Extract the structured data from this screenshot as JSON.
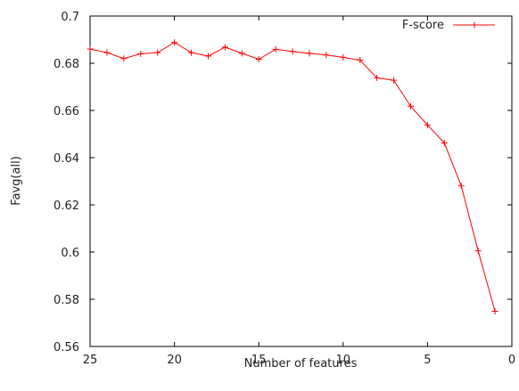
{
  "chart_data": {
    "type": "line",
    "xlabel": "Number of features",
    "ylabel": "Favg(all)",
    "xlim": [
      25,
      0
    ],
    "ylim": [
      0.56,
      0.7
    ],
    "x_ticks": [
      25,
      20,
      15,
      10,
      5,
      0
    ],
    "y_ticks": [
      0.56,
      0.58,
      0.6,
      0.62,
      0.64,
      0.66,
      0.68,
      0.7
    ],
    "x_tick_labels": [
      "25",
      "20",
      "15",
      "10",
      "5",
      "0"
    ],
    "y_tick_labels": [
      "0.56",
      "0.58",
      "0.6",
      "0.62",
      "0.64",
      "0.66",
      "0.68",
      "0.7"
    ],
    "grid": false,
    "legend_position": "top-right",
    "series": [
      {
        "name": "F-score",
        "color": "#ff0000",
        "marker": "plus",
        "x": [
          25,
          24,
          23,
          22,
          21,
          20,
          19,
          18,
          17,
          16,
          15,
          14,
          13,
          12,
          11,
          10,
          9,
          8,
          7,
          6,
          5,
          4,
          3,
          2,
          1
        ],
        "y": [
          0.686,
          0.6845,
          0.682,
          0.684,
          0.6845,
          0.6888,
          0.6845,
          0.683,
          0.6868,
          0.6842,
          0.6817,
          0.6859,
          0.685,
          0.6842,
          0.6835,
          0.6825,
          0.6813,
          0.6738,
          0.6728,
          0.6618,
          0.6538,
          0.6462,
          0.628,
          0.6005,
          0.5749
        ]
      }
    ]
  }
}
